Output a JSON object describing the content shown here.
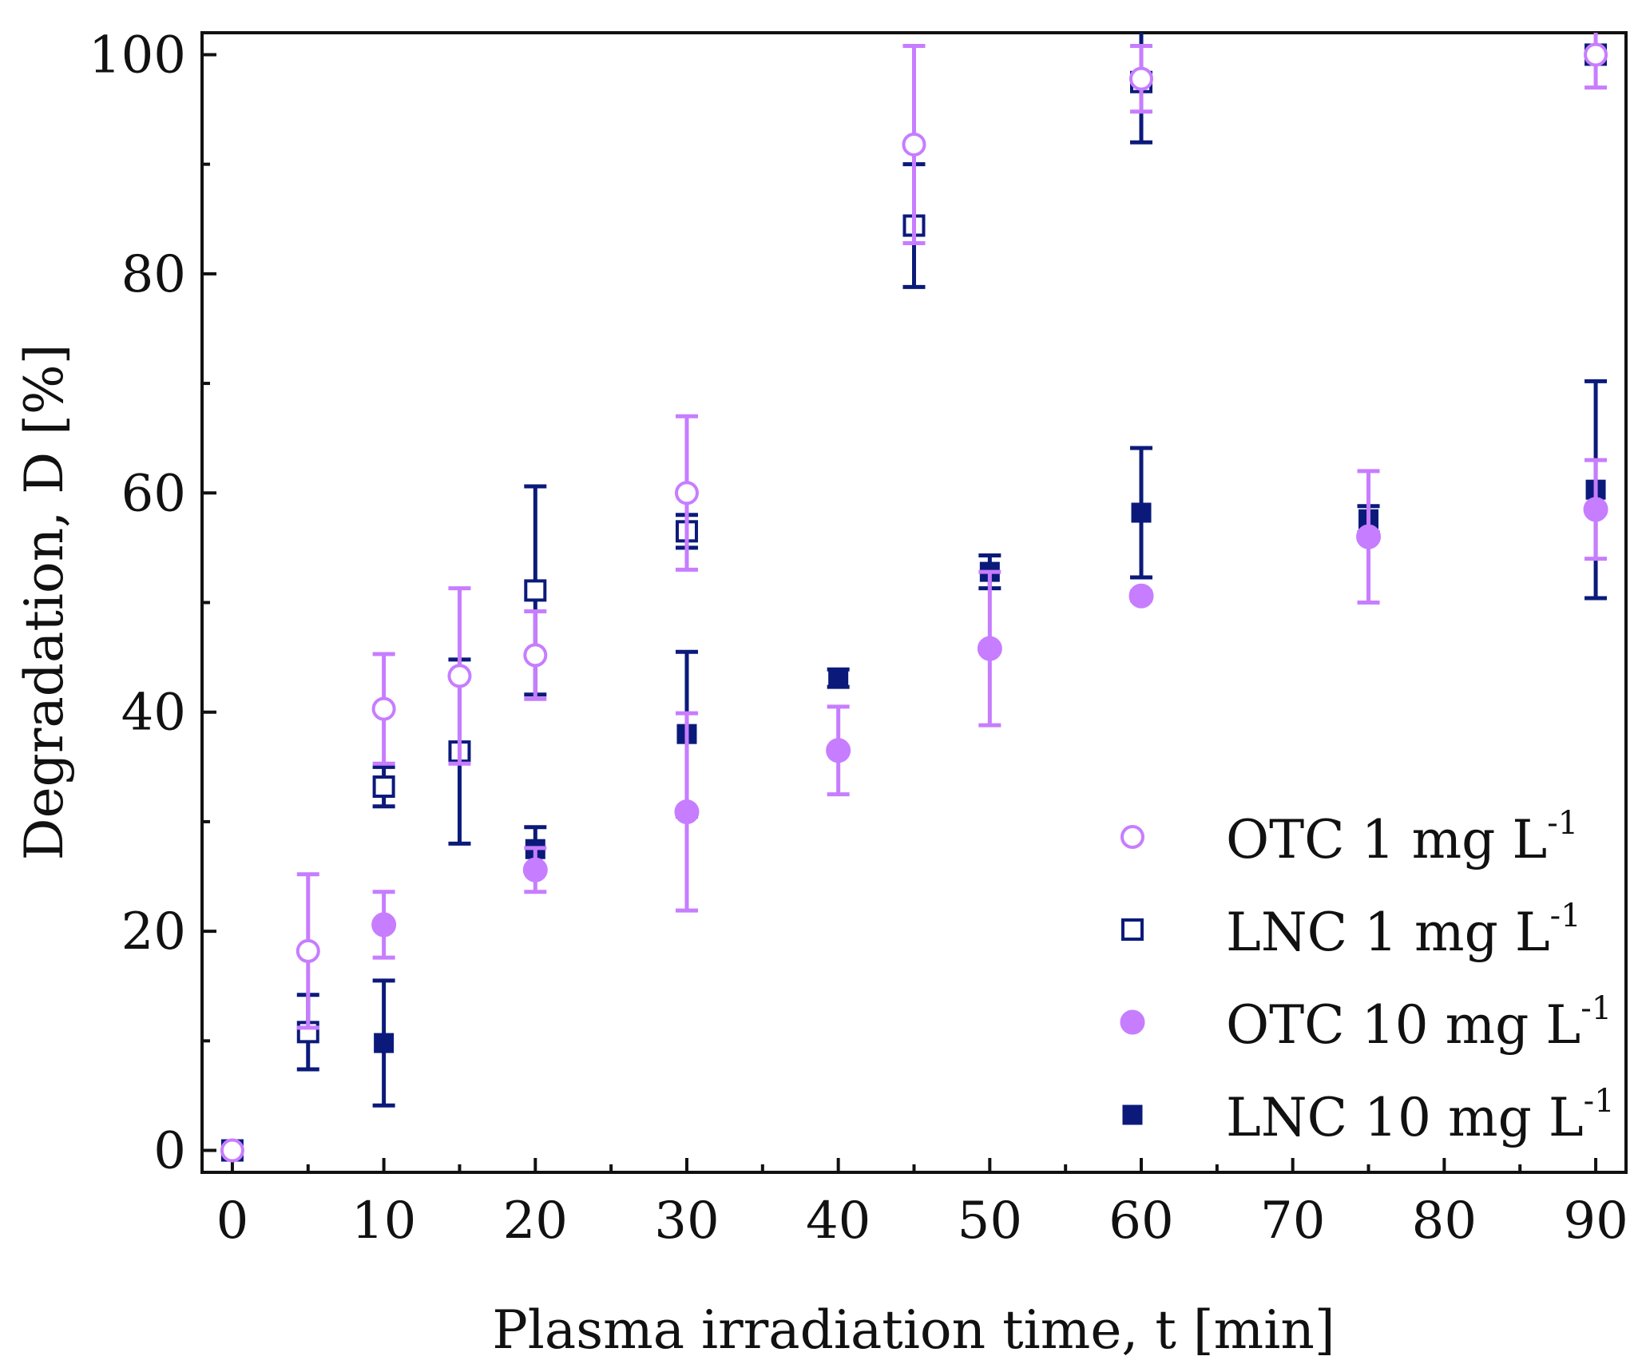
{
  "chart_data": {
    "type": "scatter",
    "xlabel": "Plasma irradiation time, t [min]",
    "ylabel": "Degradation, D [%]",
    "xlim": [
      -2,
      92
    ],
    "ylim": [
      -2,
      102
    ],
    "xticks": [
      0,
      10,
      20,
      30,
      40,
      50,
      60,
      70,
      80,
      90
    ],
    "xticks_minor": [
      5,
      15,
      25,
      35,
      45,
      55,
      65,
      75,
      85
    ],
    "yticks": [
      0,
      20,
      40,
      60,
      80,
      100
    ],
    "yticks_minor": [
      10,
      30,
      50,
      70,
      90
    ],
    "legend_position": "bottom-right",
    "series": [
      {
        "name": "OTC 1 mg L",
        "name_sup": "-1",
        "marker": "circle-open",
        "color": "#c77dff",
        "points": [
          {
            "x": 0,
            "y": 0,
            "err": 0
          },
          {
            "x": 5,
            "y": 18.2,
            "err": 7
          },
          {
            "x": 10,
            "y": 40.3,
            "err": 5
          },
          {
            "x": 15,
            "y": 43.3,
            "err": 8
          },
          {
            "x": 20,
            "y": 45.2,
            "err": 4
          },
          {
            "x": 30,
            "y": 60,
            "err": 7
          },
          {
            "x": 45,
            "y": 91.8,
            "err": 9
          },
          {
            "x": 60,
            "y": 97.8,
            "err": 3
          },
          {
            "x": 90,
            "y": 100,
            "err": 3
          }
        ]
      },
      {
        "name": "LNC 1 mg L",
        "name_sup": "-1",
        "marker": "square-open",
        "color": "#0b1a7a",
        "points": [
          {
            "x": 0,
            "y": 0,
            "err": 0
          },
          {
            "x": 5,
            "y": 10.8,
            "err": 3.4
          },
          {
            "x": 10,
            "y": 33.2,
            "err": 1.8
          },
          {
            "x": 15,
            "y": 36.4,
            "err": 8.4
          },
          {
            "x": 20,
            "y": 51.1,
            "err": 9.5
          },
          {
            "x": 30,
            "y": 56.5,
            "err": 1.5
          },
          {
            "x": 45,
            "y": 84.4,
            "err": 5.6
          },
          {
            "x": 60,
            "y": 97.5,
            "err": 5.5
          },
          {
            "x": 90,
            "y": 100,
            "err": 0
          }
        ]
      },
      {
        "name": "OTC 10 mg L",
        "name_sup": "-1",
        "marker": "circle-filled",
        "color": "#c77dff",
        "points": [
          {
            "x": 10,
            "y": 20.6,
            "err": 3
          },
          {
            "x": 20,
            "y": 25.6,
            "err": 2
          },
          {
            "x": 30,
            "y": 30.9,
            "err": 9
          },
          {
            "x": 40,
            "y": 36.5,
            "err": 4
          },
          {
            "x": 50,
            "y": 45.8,
            "err": 7
          },
          {
            "x": 60,
            "y": 50.6,
            "err": 0.4
          },
          {
            "x": 75,
            "y": 56,
            "err": 6
          },
          {
            "x": 90,
            "y": 58.5,
            "err": 4.5
          }
        ]
      },
      {
        "name": "LNC 10 mg L",
        "name_sup": "-1",
        "marker": "square-filled",
        "color": "#0b1a7a",
        "points": [
          {
            "x": 10,
            "y": 9.8,
            "err": 5.7
          },
          {
            "x": 20,
            "y": 27.5,
            "err": 2
          },
          {
            "x": 30,
            "y": 38,
            "err": 7.5
          },
          {
            "x": 40,
            "y": 43.1,
            "err": 0.8
          },
          {
            "x": 50,
            "y": 52.8,
            "err": 1.5
          },
          {
            "x": 60,
            "y": 58.2,
            "err": 5.9
          },
          {
            "x": 75,
            "y": 57.6,
            "err": 1.2
          },
          {
            "x": 90,
            "y": 60.3,
            "err": 9.9
          }
        ]
      }
    ]
  }
}
